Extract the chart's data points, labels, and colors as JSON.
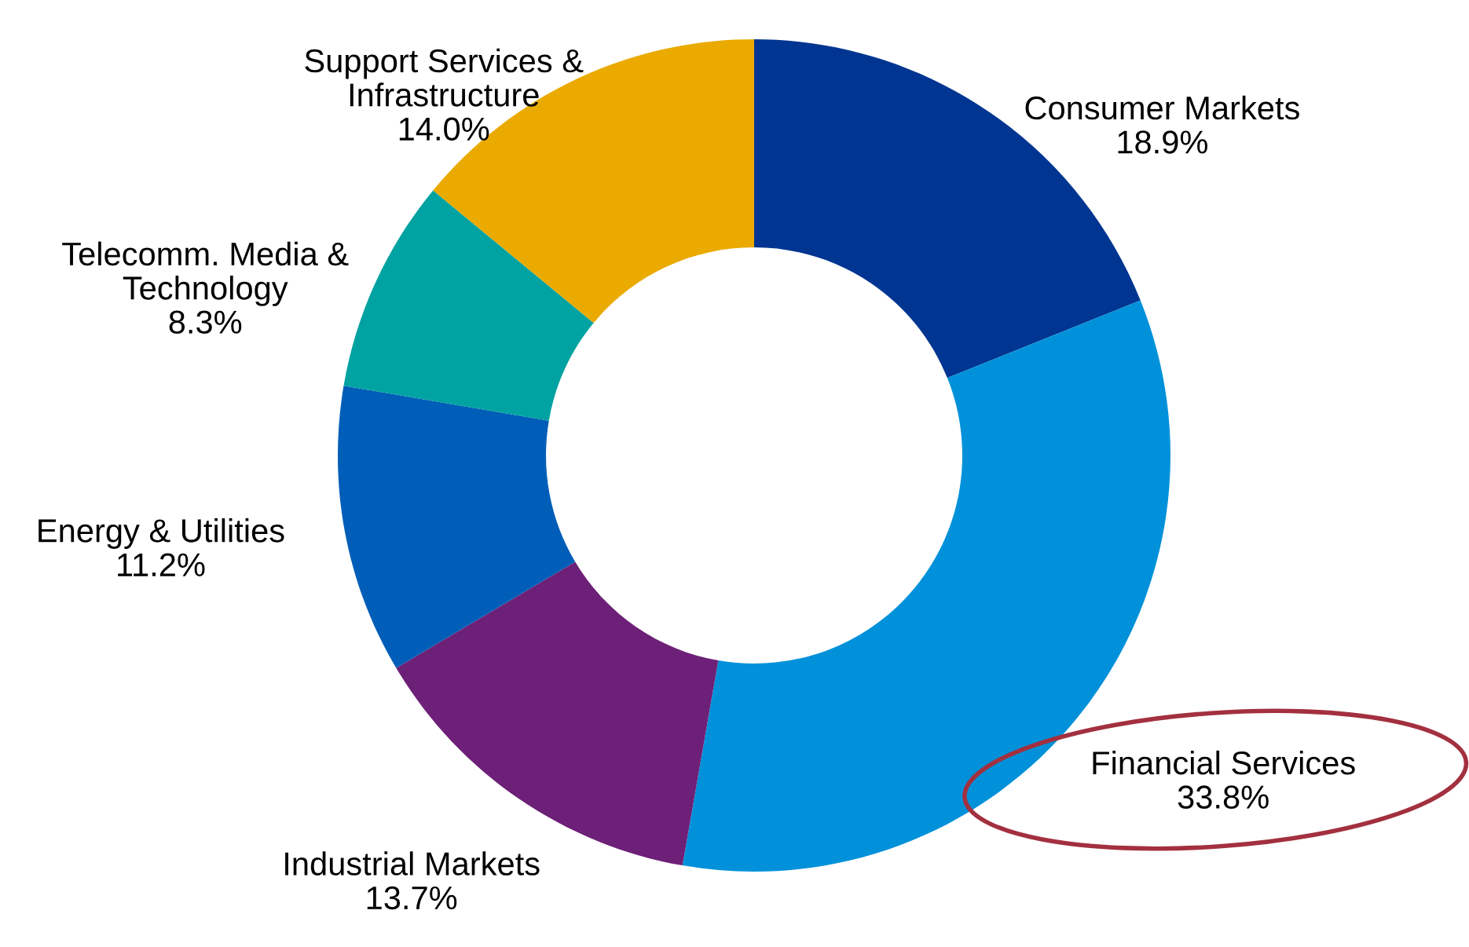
{
  "chart_data": {
    "type": "donut",
    "categories": [
      "Consumer Markets",
      "Financial Services",
      "Industrial Markets",
      "Energy & Utilities",
      "Telecomm. Media &\nTechnology",
      "Support Services &\nInfrastructure"
    ],
    "values": [
      18.9,
      33.8,
      13.7,
      11.2,
      8.3,
      14.0
    ],
    "value_labels": [
      "18.9%",
      "33.8%",
      "13.7%",
      "11.2%",
      "8.3%",
      "14.0%"
    ],
    "colors": [
      "#003591",
      "#0091da",
      "#6d2077",
      "#005eb8",
      "#00a3a1",
      "#eaaa00"
    ],
    "legend": false
  }
}
